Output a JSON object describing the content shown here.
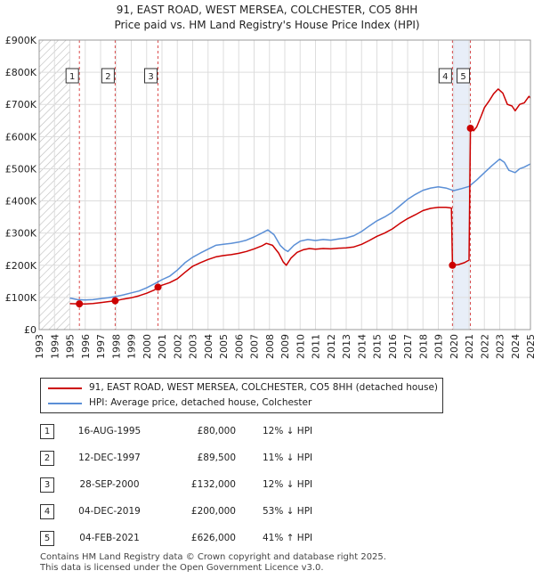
{
  "title_line1": "91, EAST ROAD, WEST MERSEA, COLCHESTER, CO5 8HH",
  "title_line2": "Price paid vs. HM Land Registry's House Price Index (HPI)",
  "colors": {
    "price_paid": "#cc0000",
    "hpi": "#5b8fd6",
    "hatch": "#bbbbbb",
    "highlight": "#e8eef8"
  },
  "chart_data": {
    "type": "line",
    "x_range": [
      1993,
      2025
    ],
    "ylim": [
      0,
      900000
    ],
    "y_ticks": [
      {
        "value": 0,
        "label": "£0"
      },
      {
        "value": 100000,
        "label": "£100K"
      },
      {
        "value": 200000,
        "label": "£200K"
      },
      {
        "value": 300000,
        "label": "£300K"
      },
      {
        "value": 400000,
        "label": "£400K"
      },
      {
        "value": 500000,
        "label": "£500K"
      },
      {
        "value": 600000,
        "label": "£600K"
      },
      {
        "value": 700000,
        "label": "£700K"
      },
      {
        "value": 800000,
        "label": "£800K"
      },
      {
        "value": 900000,
        "label": "£900K"
      }
    ],
    "x_ticks": [
      "1993",
      "1994",
      "1995",
      "1996",
      "1997",
      "1998",
      "1999",
      "2000",
      "2001",
      "2002",
      "2003",
      "2004",
      "2005",
      "2006",
      "2007",
      "2008",
      "2009",
      "2010",
      "2011",
      "2012",
      "2013",
      "2014",
      "2015",
      "2016",
      "2017",
      "2018",
      "2019",
      "2020",
      "2021",
      "2022",
      "2023",
      "2024",
      "2025"
    ],
    "hatched_before": 1995.0,
    "series": [
      {
        "name": "91, EAST ROAD, WEST MERSEA, COLCHESTER, CO5 8HH (detached house)",
        "color": "#cc0000",
        "points": [
          [
            1995.0,
            80500
          ],
          [
            1995.62,
            80000
          ],
          [
            1996.0,
            79500
          ],
          [
            1996.5,
            81000
          ],
          [
            1997.0,
            84000
          ],
          [
            1997.5,
            87000
          ],
          [
            1997.95,
            89500
          ],
          [
            1998.5,
            95000
          ],
          [
            1999.0,
            99000
          ],
          [
            1999.5,
            105000
          ],
          [
            2000.0,
            113000
          ],
          [
            2000.5,
            123000
          ],
          [
            2000.74,
            132000
          ],
          [
            2001.0,
            138000
          ],
          [
            2001.5,
            146000
          ],
          [
            2002.0,
            158000
          ],
          [
            2002.5,
            178000
          ],
          [
            2003.0,
            197000
          ],
          [
            2003.5,
            208000
          ],
          [
            2004.0,
            218000
          ],
          [
            2004.5,
            226000
          ],
          [
            2005.0,
            230000
          ],
          [
            2005.5,
            233000
          ],
          [
            2006.0,
            237000
          ],
          [
            2006.5,
            243000
          ],
          [
            2007.0,
            251000
          ],
          [
            2007.5,
            260000
          ],
          [
            2007.8,
            268000
          ],
          [
            2008.2,
            262000
          ],
          [
            2008.6,
            238000
          ],
          [
            2008.9,
            210000
          ],
          [
            2009.1,
            200000
          ],
          [
            2009.4,
            222000
          ],
          [
            2009.8,
            240000
          ],
          [
            2010.2,
            248000
          ],
          [
            2010.6,
            252000
          ],
          [
            2011.0,
            250000
          ],
          [
            2011.5,
            252000
          ],
          [
            2012.0,
            251000
          ],
          [
            2012.5,
            253000
          ],
          [
            2013.0,
            254000
          ],
          [
            2013.5,
            257000
          ],
          [
            2014.0,
            265000
          ],
          [
            2014.5,
            277000
          ],
          [
            2015.0,
            290000
          ],
          [
            2015.5,
            300000
          ],
          [
            2016.0,
            313000
          ],
          [
            2016.5,
            330000
          ],
          [
            2017.0,
            345000
          ],
          [
            2017.5,
            357000
          ],
          [
            2018.0,
            370000
          ],
          [
            2018.5,
            377000
          ],
          [
            2019.0,
            380000
          ],
          [
            2019.5,
            380000
          ],
          [
            2019.85,
            378000
          ],
          [
            2019.92,
            200000
          ],
          [
            2020.3,
            202000
          ],
          [
            2020.7,
            208000
          ],
          [
            2021.0,
            216000
          ],
          [
            2021.09,
            626000
          ],
          [
            2021.3,
            618000
          ],
          [
            2021.5,
            630000
          ],
          [
            2021.8,
            665000
          ],
          [
            2022.0,
            690000
          ],
          [
            2022.3,
            710000
          ],
          [
            2022.6,
            733000
          ],
          [
            2022.9,
            748000
          ],
          [
            2023.2,
            735000
          ],
          [
            2023.5,
            700000
          ],
          [
            2023.8,
            695000
          ],
          [
            2024.0,
            680000
          ],
          [
            2024.3,
            700000
          ],
          [
            2024.6,
            705000
          ],
          [
            2024.9,
            725000
          ],
          [
            2025.0,
            720000
          ]
        ]
      },
      {
        "name": "HPI: Average price, detached house, Colchester",
        "color": "#5b8fd6",
        "points": [
          [
            1995.0,
            98000
          ],
          [
            1995.5,
            93000
          ],
          [
            1996.0,
            92000
          ],
          [
            1996.5,
            93000
          ],
          [
            1997.0,
            96000
          ],
          [
            1997.5,
            99000
          ],
          [
            1998.0,
            103000
          ],
          [
            1998.5,
            108000
          ],
          [
            1999.0,
            114000
          ],
          [
            1999.5,
            120000
          ],
          [
            2000.0,
            130000
          ],
          [
            2000.5,
            142000
          ],
          [
            2001.0,
            155000
          ],
          [
            2001.5,
            166000
          ],
          [
            2002.0,
            185000
          ],
          [
            2002.5,
            208000
          ],
          [
            2003.0,
            225000
          ],
          [
            2003.5,
            238000
          ],
          [
            2004.0,
            250000
          ],
          [
            2004.5,
            262000
          ],
          [
            2005.0,
            265000
          ],
          [
            2005.5,
            268000
          ],
          [
            2006.0,
            272000
          ],
          [
            2006.5,
            278000
          ],
          [
            2007.0,
            288000
          ],
          [
            2007.5,
            300000
          ],
          [
            2007.9,
            310000
          ],
          [
            2008.3,
            295000
          ],
          [
            2008.7,
            262000
          ],
          [
            2009.0,
            248000
          ],
          [
            2009.2,
            243000
          ],
          [
            2009.6,
            262000
          ],
          [
            2010.0,
            275000
          ],
          [
            2010.5,
            280000
          ],
          [
            2011.0,
            277000
          ],
          [
            2011.5,
            280000
          ],
          [
            2012.0,
            278000
          ],
          [
            2012.5,
            282000
          ],
          [
            2013.0,
            285000
          ],
          [
            2013.5,
            292000
          ],
          [
            2014.0,
            305000
          ],
          [
            2014.5,
            322000
          ],
          [
            2015.0,
            338000
          ],
          [
            2015.5,
            350000
          ],
          [
            2016.0,
            365000
          ],
          [
            2016.5,
            385000
          ],
          [
            2017.0,
            405000
          ],
          [
            2017.5,
            420000
          ],
          [
            2018.0,
            433000
          ],
          [
            2018.5,
            440000
          ],
          [
            2019.0,
            444000
          ],
          [
            2019.5,
            440000
          ],
          [
            2020.0,
            432000
          ],
          [
            2020.5,
            438000
          ],
          [
            2021.0,
            445000
          ],
          [
            2021.5,
            465000
          ],
          [
            2022.0,
            488000
          ],
          [
            2022.5,
            510000
          ],
          [
            2023.0,
            530000
          ],
          [
            2023.3,
            520000
          ],
          [
            2023.6,
            495000
          ],
          [
            2024.0,
            488000
          ],
          [
            2024.3,
            500000
          ],
          [
            2024.6,
            505000
          ],
          [
            2025.0,
            515000
          ]
        ]
      }
    ],
    "markers": [
      {
        "label": "1",
        "x": 1995.62,
        "y": 80000
      },
      {
        "label": "2",
        "x": 1997.95,
        "y": 89500
      },
      {
        "label": "3",
        "x": 2000.74,
        "y": 132000
      },
      {
        "label": "4",
        "x": 2019.92,
        "y": 200000
      },
      {
        "label": "5",
        "x": 2021.09,
        "y": 626000
      }
    ]
  },
  "legend": {
    "price_paid_label": "91, EAST ROAD, WEST MERSEA, COLCHESTER, CO5 8HH (detached house)",
    "hpi_label": "HPI: Average price, detached house, Colchester"
  },
  "transactions": [
    {
      "num": "1",
      "date": "16-AUG-1995",
      "price": "£80,000",
      "hpi": "12% ↓ HPI"
    },
    {
      "num": "2",
      "date": "12-DEC-1997",
      "price": "£89,500",
      "hpi": "11% ↓ HPI"
    },
    {
      "num": "3",
      "date": "28-SEP-2000",
      "price": "£132,000",
      "hpi": "12% ↓ HPI"
    },
    {
      "num": "4",
      "date": "04-DEC-2019",
      "price": "£200,000",
      "hpi": "53% ↓ HPI"
    },
    {
      "num": "5",
      "date": "04-FEB-2021",
      "price": "£626,000",
      "hpi": "41% ↑ HPI"
    }
  ],
  "footer_line1": "Contains HM Land Registry data © Crown copyright and database right 2025.",
  "footer_line2": "This data is licensed under the Open Government Licence v3.0."
}
